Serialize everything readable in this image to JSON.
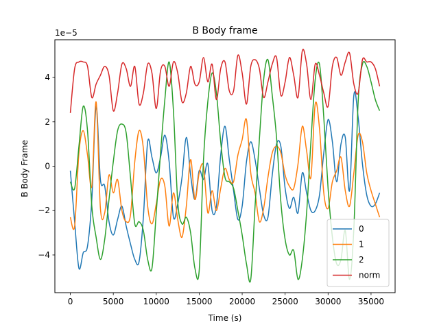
{
  "chart_data": {
    "type": "line",
    "title": "B Body frame",
    "xlabel": "Time (s)",
    "ylabel": "B Body Frame",
    "offset_label": "1e−5",
    "xlim": [
      -1800,
      37800
    ],
    "ylim": [
      -5.7,
      5.7
    ],
    "xticks": [
      0,
      5000,
      10000,
      15000,
      20000,
      25000,
      30000,
      35000
    ],
    "yticks": [
      -4,
      -2,
      0,
      2,
      4
    ],
    "ytick_labels": [
      "−4",
      "−2",
      "0",
      "2",
      "4"
    ],
    "grid": false,
    "legend": {
      "placement": "lower-right"
    },
    "x": [
      0,
      500,
      1000,
      1500,
      2000,
      2500,
      3000,
      3500,
      4000,
      4500,
      5000,
      5500,
      6000,
      6500,
      7000,
      7500,
      8000,
      8500,
      9000,
      9500,
      10000,
      10500,
      11000,
      11500,
      12000,
      12500,
      13000,
      13500,
      14000,
      14500,
      15000,
      15500,
      16000,
      16500,
      17000,
      17500,
      18000,
      18500,
      19000,
      19500,
      20000,
      20500,
      21000,
      21500,
      22000,
      22500,
      23000,
      23500,
      24000,
      24500,
      25000,
      25500,
      26000,
      26500,
      27000,
      27500,
      28000,
      28500,
      29000,
      29500,
      30000,
      30500,
      31000,
      31500,
      32000,
      32500,
      33000,
      33500,
      34000,
      34500,
      35000,
      35500,
      36000
    ],
    "series": [
      {
        "name": "0",
        "color": "#1f77b4",
        "values": [
          -0.2,
          -2.5,
          -4.6,
          -3.9,
          -3.6,
          -1.5,
          2.7,
          -0.6,
          -0.9,
          -2.5,
          -3.1,
          -2.4,
          -1.8,
          -2.7,
          -3.5,
          -4.2,
          -4.3,
          -2.3,
          1.1,
          0.4,
          -0.3,
          0.4,
          1.4,
          0.2,
          -2.3,
          -1.7,
          -0.5,
          1.3,
          -0.4,
          -1.5,
          -0.2,
          -0.6,
          0.1,
          -2.0,
          -1.8,
          0.5,
          1.8,
          0.3,
          -1.1,
          -2.4,
          -1.8,
          0.2,
          1.1,
          0.3,
          -1.0,
          -2.2,
          -2.3,
          -0.4,
          1.0,
          0.9,
          -1.0,
          -1.9,
          -1.4,
          -2.1,
          -0.3,
          -1.2,
          -2.0,
          -2.0,
          -1.3,
          0.6,
          2.1,
          1.1,
          -0.7,
          1.0,
          1.3,
          -1.1,
          3.2,
          2.2,
          0.1,
          -1.3,
          -1.8,
          -1.7,
          -1.2
        ]
      },
      {
        "name": "1",
        "color": "#ff7f0e",
        "values": [
          -2.3,
          -2.7,
          0.6,
          1.6,
          0.5,
          -0.9,
          2.9,
          -1.9,
          -2.1,
          -0.4,
          -1.2,
          -0.6,
          -2.0,
          -2.5,
          -2.2,
          0.2,
          1.6,
          0.8,
          -1.8,
          -2.6,
          -1.7,
          -0.6,
          -0.9,
          -2.7,
          -1.2,
          -2.4,
          -3.2,
          -1.8,
          0.3,
          -1.5,
          -0.3,
          0.0,
          -2.1,
          -1.1,
          -2.0,
          -1.0,
          -0.1,
          -0.6,
          -0.7,
          0.5,
          1.2,
          2.1,
          -0.3,
          -1.2,
          -2.5,
          -1.9,
          -0.5,
          0.6,
          0.9,
          0.6,
          -0.4,
          -0.9,
          -1.0,
          0.1,
          1.8,
          0.7,
          -0.5,
          2.8,
          1.7,
          -1.2,
          -1.9,
          -0.7,
          -0.2,
          0.4,
          -1.1,
          -1.8,
          -0.3,
          1.4,
          1.1,
          -0.3,
          -1.1,
          -1.7,
          -2.3
        ]
      },
      {
        "name": "2",
        "color": "#2ca02c",
        "values": [
          -0.7,
          -1.0,
          0.9,
          2.7,
          1.6,
          -1.8,
          -3.2,
          -4.2,
          -3.3,
          -1.5,
          0.2,
          1.6,
          1.9,
          1.5,
          -0.5,
          -2.6,
          -2.5,
          -2.9,
          -4.2,
          -4.6,
          -2.1,
          0.6,
          3.0,
          4.7,
          2.5,
          -1.6,
          -2.6,
          -2.3,
          -3.0,
          -4.6,
          -4.7,
          0.3,
          2.9,
          4.2,
          3.3,
          1.1,
          -0.5,
          -0.7,
          -1.0,
          -2.0,
          -3.1,
          -4.4,
          -5.1,
          -1.8,
          1.2,
          3.9,
          4.8,
          3.2,
          1.3,
          -1.6,
          -3.3,
          -4.0,
          -3.8,
          -5.1,
          -4.2,
          -2.1,
          1.1,
          3.9,
          4.6,
          2.2,
          -1.0,
          -3.2,
          -4.4,
          -4.2,
          -2.9,
          -5.1,
          -2.8,
          2.9,
          4.6,
          4.5,
          3.8,
          3.0,
          2.5
        ]
      },
      {
        "name": "norm",
        "color": "#d62728",
        "values": [
          2.4,
          4.4,
          4.7,
          4.7,
          4.5,
          3.1,
          3.7,
          4.1,
          4.5,
          4.1,
          2.5,
          3.3,
          4.6,
          4.4,
          3.6,
          4.5,
          2.8,
          3.3,
          4.6,
          4.2,
          2.6,
          4.3,
          4.5,
          3.6,
          4.7,
          4.2,
          2.9,
          3.3,
          4.5,
          3.7,
          3.8,
          4.9,
          3.8,
          4.6,
          3.0,
          4.4,
          4.7,
          3.4,
          3.4,
          5.0,
          4.2,
          2.8,
          4.5,
          4.8,
          4.4,
          3.1,
          3.8,
          4.6,
          4.9,
          3.2,
          3.8,
          4.9,
          4.1,
          3.1,
          5.2,
          4.6,
          3.0,
          4.6,
          4.1,
          3.3,
          2.7,
          4.5,
          4.9,
          4.1,
          4.7,
          5.1,
          3.7,
          3.3,
          4.8,
          4.7,
          4.7,
          4.4,
          3.6
        ]
      }
    ]
  }
}
